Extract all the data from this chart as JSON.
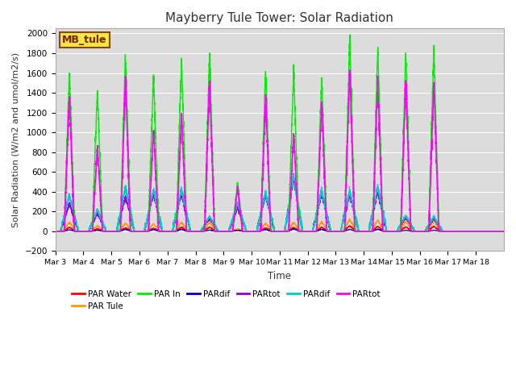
{
  "title": "Mayberry Tule Tower: Solar Radiation",
  "ylabel": "Solar Radiation (W/m2 and umol/m2/s)",
  "xlabel": "Time",
  "ylim": [
    -200,
    2050
  ],
  "yticks": [
    -200,
    0,
    200,
    400,
    600,
    800,
    1000,
    1200,
    1400,
    1600,
    1800,
    2000
  ],
  "n_days": 16,
  "start_day": 3,
  "bg_color": "#dcdcdc",
  "legend_box_label": "MB_tule",
  "legend_box_color": "#f5e642",
  "legend_box_border": "#8b4513",
  "series": [
    {
      "label": "PAR Water",
      "color": "#ff0000"
    },
    {
      "label": "PAR Tule",
      "color": "#ff9900"
    },
    {
      "label": "PAR In",
      "color": "#00ee00"
    },
    {
      "label": "PARdif",
      "color": "#0000cc"
    },
    {
      "label": "PARtot",
      "color": "#9900cc"
    },
    {
      "label": "PARdif",
      "color": "#00cccc"
    },
    {
      "label": "PARtot",
      "color": "#ff00ff"
    }
  ],
  "day_peaks_green": [
    1640,
    1420,
    1800,
    1590,
    1740,
    1790,
    500,
    1640,
    1650,
    1550,
    1960,
    1870,
    1810,
    1840
  ],
  "day_peaks_magenta": [
    1390,
    870,
    1550,
    1040,
    1210,
    1530,
    440,
    1370,
    1000,
    1300,
    1660,
    1530,
    1520,
    1520
  ],
  "day_peaks_cyan": [
    370,
    220,
    450,
    420,
    430,
    150,
    280,
    400,
    560,
    420,
    410,
    450,
    160,
    150
  ],
  "day_peaks_orange": [
    90,
    55,
    80,
    75,
    90,
    90,
    25,
    80,
    90,
    95,
    120,
    110,
    100,
    110
  ],
  "day_peaks_red": [
    40,
    25,
    35,
    30,
    40,
    40,
    10,
    35,
    40,
    40,
    55,
    50,
    45,
    50
  ],
  "day_peaks_blue": [
    15,
    10,
    20,
    18,
    20,
    12,
    10,
    18,
    25,
    20,
    20,
    22,
    10,
    10
  ],
  "day_peaks_purple": [
    280,
    180,
    350,
    380,
    380,
    130,
    240,
    370,
    540,
    380,
    380,
    410,
    140,
    130
  ],
  "pulse_half_day": 0.22,
  "pulse_half_day_cyan": 0.32,
  "pts_per_day": 288
}
